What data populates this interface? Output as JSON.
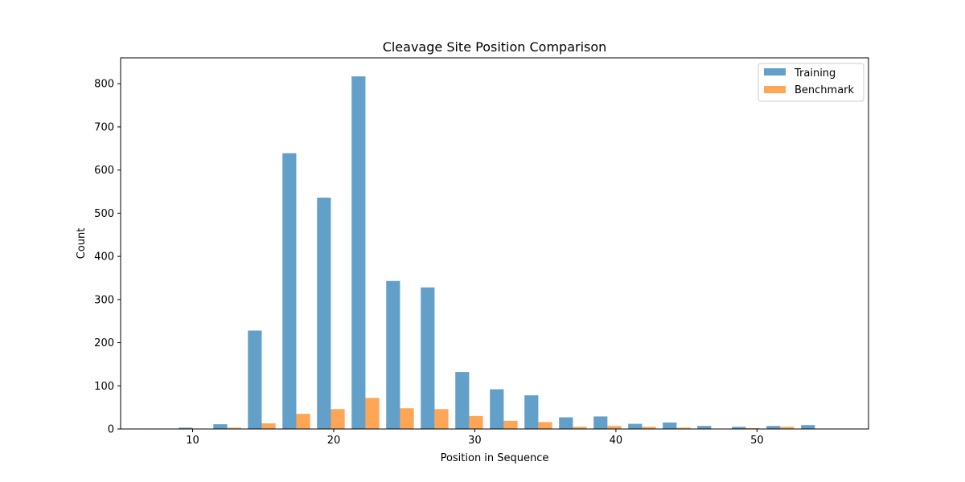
{
  "chart_data": {
    "type": "bar",
    "title": "Cleavage Site Position Comparison",
    "xlabel": "Position in Sequence",
    "ylabel": "Count",
    "xlim": [
      4.9,
      57.9
    ],
    "ylim": [
      0,
      860
    ],
    "xticks": [
      10,
      20,
      30,
      40,
      50
    ],
    "yticks": [
      0,
      100,
      200,
      300,
      400,
      500,
      600,
      700,
      800
    ],
    "bin_width": 2.45,
    "bins": [
      {
        "x": 7.55,
        "training": 1,
        "benchmark": 0
      },
      {
        "x": 10.0,
        "training": 3,
        "benchmark": 1
      },
      {
        "x": 12.45,
        "training": 11,
        "benchmark": 3
      },
      {
        "x": 14.9,
        "training": 228,
        "benchmark": 13
      },
      {
        "x": 17.35,
        "training": 639,
        "benchmark": 35
      },
      {
        "x": 19.8,
        "training": 536,
        "benchmark": 46
      },
      {
        "x": 22.25,
        "training": 817,
        "benchmark": 72
      },
      {
        "x": 24.7,
        "training": 343,
        "benchmark": 48
      },
      {
        "x": 27.15,
        "training": 328,
        "benchmark": 46
      },
      {
        "x": 29.6,
        "training": 132,
        "benchmark": 30
      },
      {
        "x": 32.05,
        "training": 92,
        "benchmark": 19
      },
      {
        "x": 34.5,
        "training": 78,
        "benchmark": 16
      },
      {
        "x": 36.95,
        "training": 27,
        "benchmark": 5
      },
      {
        "x": 39.4,
        "training": 29,
        "benchmark": 7
      },
      {
        "x": 41.85,
        "training": 12,
        "benchmark": 5
      },
      {
        "x": 44.3,
        "training": 15,
        "benchmark": 3
      },
      {
        "x": 46.75,
        "training": 7,
        "benchmark": 0
      },
      {
        "x": 49.2,
        "training": 5,
        "benchmark": 2
      },
      {
        "x": 51.65,
        "training": 7,
        "benchmark": 5
      },
      {
        "x": 54.1,
        "training": 9,
        "benchmark": 1
      }
    ],
    "series": [
      {
        "name": "Training",
        "key": "training",
        "color": "#1f77b4"
      },
      {
        "name": "Benchmark",
        "key": "benchmark",
        "color": "#ff7f0e"
      }
    ],
    "bar_opacity": 0.7,
    "legend_position": "top-right",
    "grid": false
  }
}
